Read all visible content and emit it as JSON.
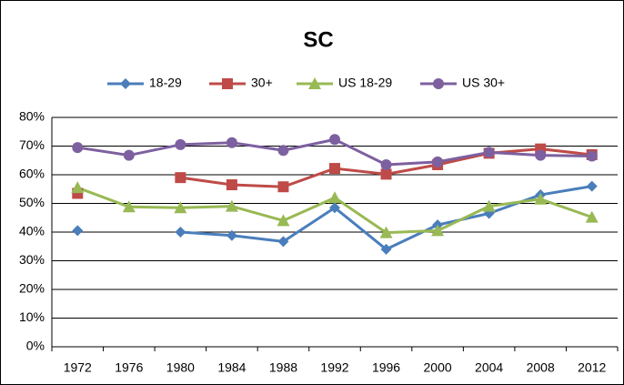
{
  "chart_data": {
    "type": "line",
    "title": "SC",
    "categories": [
      "1972",
      "1976",
      "1980",
      "1984",
      "1988",
      "1992",
      "1996",
      "2000",
      "2004",
      "2008",
      "2012"
    ],
    "series": [
      {
        "name": "18-29",
        "color": "#4a7ebb",
        "marker": "diamond",
        "values": [
          40.5,
          null,
          40,
          38.8,
          36.7,
          48.5,
          34,
          42.5,
          46.5,
          53,
          56
        ]
      },
      {
        "name": "30+",
        "color": "#be4b48",
        "marker": "square",
        "values": [
          53.5,
          null,
          59,
          56.5,
          55.8,
          62.2,
          60.2,
          63.5,
          67.5,
          69,
          67
        ]
      },
      {
        "name": "US 18-29",
        "color": "#98b954",
        "marker": "triangle",
        "values": [
          55.5,
          48.8,
          48.5,
          49,
          44,
          52,
          39.8,
          40.5,
          49,
          51.5,
          45.2
        ]
      },
      {
        "name": "US 30+",
        "color": "#7d60a0",
        "marker": "circle",
        "values": [
          69.5,
          66.8,
          70.5,
          71.2,
          68.5,
          72.3,
          63.5,
          64.5,
          67.8,
          66.8,
          66.5
        ]
      }
    ],
    "ylim": [
      0,
      80
    ],
    "yticks": [
      {
        "value": 0,
        "label": "0%"
      },
      {
        "value": 10,
        "label": "10%"
      },
      {
        "value": 20,
        "label": "20%"
      },
      {
        "value": 30,
        "label": "30%"
      },
      {
        "value": 40,
        "label": "40%"
      },
      {
        "value": 50,
        "label": "50%"
      },
      {
        "value": 60,
        "label": "60%"
      },
      {
        "value": 70,
        "label": "70%"
      },
      {
        "value": 80,
        "label": "80%"
      }
    ],
    "grid": true,
    "legend": "top"
  }
}
